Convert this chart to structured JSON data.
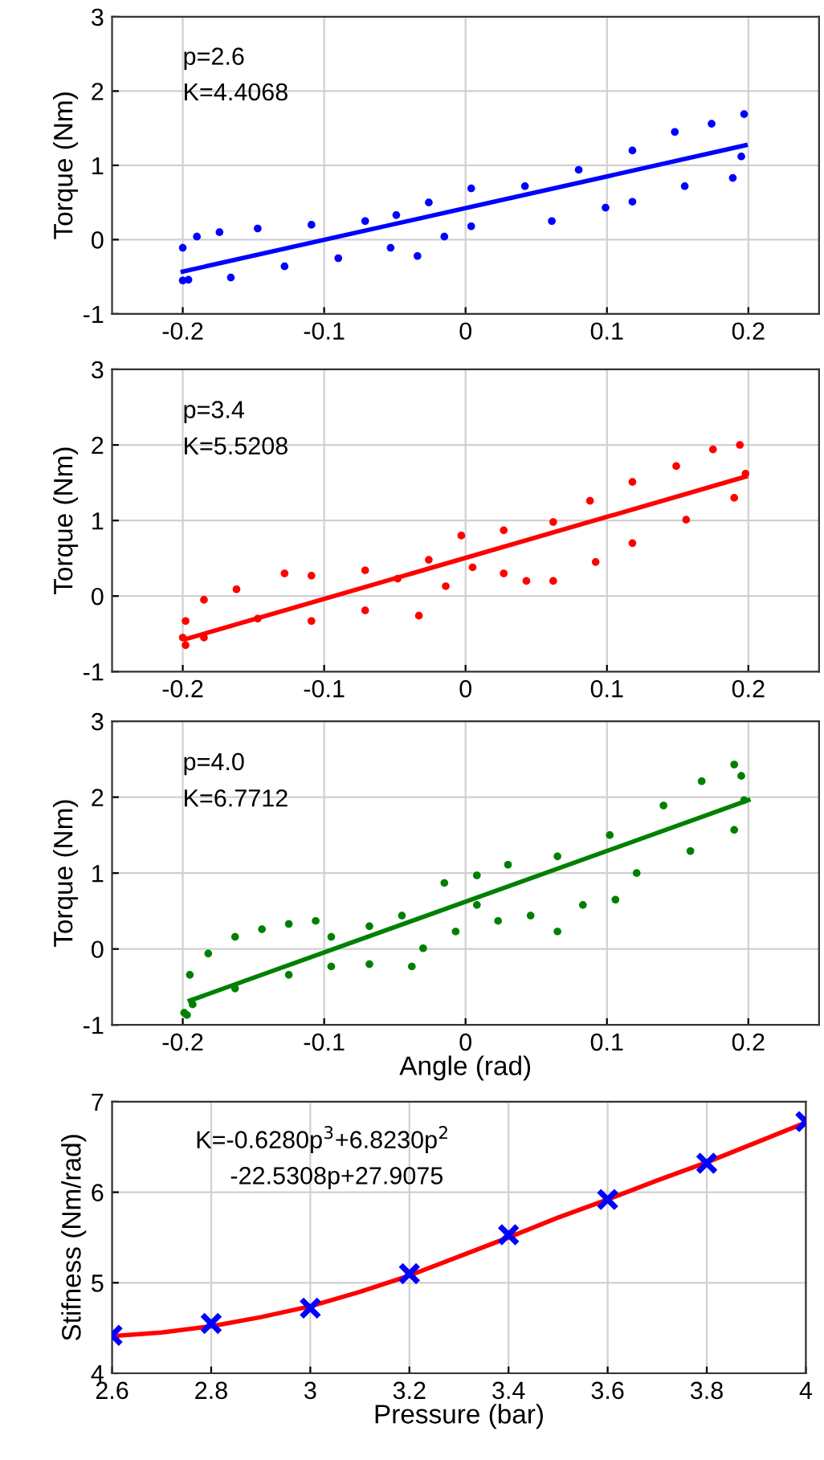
{
  "chart_data": [
    {
      "type": "scatter",
      "ylabel": "Torque (Nm)",
      "xlim": [
        -0.25,
        0.25
      ],
      "ylim": [
        -1,
        3
      ],
      "xticks": [
        -0.2,
        -0.1,
        0,
        0.1,
        0.2
      ],
      "yticks": [
        -1,
        0,
        1,
        2,
        3
      ],
      "grid": true,
      "annotations": [
        "p=2.6",
        "K=4.4068"
      ],
      "series": [
        {
          "color": "#0000ff",
          "marker": "circle",
          "x": [
            -0.2,
            -0.2,
            -0.19,
            -0.174,
            -0.147,
            -0.109,
            -0.071,
            -0.049,
            -0.026,
            0.004,
            0.042,
            0.08,
            0.118,
            0.148,
            0.174,
            0.197,
            0.195,
            0.189,
            0.155,
            0.118,
            0.099,
            0.061,
            0.004,
            -0.015,
            -0.034,
            -0.053,
            -0.09,
            -0.128,
            -0.166,
            -0.196
          ],
          "values": [
            -0.55,
            -0.11,
            0.04,
            0.1,
            0.15,
            0.2,
            0.25,
            0.33,
            0.5,
            0.69,
            0.72,
            0.94,
            1.2,
            1.45,
            1.56,
            1.69,
            1.12,
            0.83,
            0.72,
            0.51,
            0.43,
            0.25,
            0.18,
            0.04,
            -0.22,
            -0.11,
            -0.25,
            -0.36,
            -0.51,
            -0.54
          ]
        },
        {
          "type": "line",
          "color": "#0000ff",
          "marker": "none",
          "x": [
            -0.2,
            0.198
          ],
          "values": [
            -0.43,
            1.27
          ]
        }
      ]
    },
    {
      "type": "scatter",
      "ylabel": "Torque (Nm)",
      "xlim": [
        -0.25,
        0.25
      ],
      "ylim": [
        -1,
        3
      ],
      "xticks": [
        -0.2,
        -0.1,
        0,
        0.1,
        0.2
      ],
      "yticks": [
        -1,
        0,
        1,
        2,
        3
      ],
      "grid": true,
      "annotations": [
        "p=3.4",
        "K=5.5208"
      ],
      "series": [
        {
          "color": "#ff0000",
          "marker": "circle",
          "x": [
            -0.2,
            -0.198,
            -0.185,
            -0.162,
            -0.128,
            -0.109,
            -0.071,
            -0.048,
            -0.026,
            -0.003,
            0.027,
            0.062,
            0.088,
            0.118,
            0.149,
            0.175,
            0.194,
            0.198,
            0.19,
            0.156,
            0.118,
            0.092,
            0.062,
            0.043,
            0.027,
            0.005,
            -0.014,
            -0.033,
            -0.071,
            -0.109,
            -0.147,
            -0.185,
            -0.198
          ],
          "values": [
            -0.55,
            -0.33,
            -0.05,
            0.09,
            0.3,
            0.27,
            0.34,
            0.23,
            0.48,
            0.8,
            0.87,
            0.98,
            1.26,
            1.51,
            1.72,
            1.94,
            2.0,
            1.62,
            1.3,
            1.01,
            0.7,
            0.45,
            0.2,
            0.2,
            0.3,
            0.38,
            0.13,
            -0.26,
            -0.19,
            -0.33,
            -0.3,
            -0.55,
            -0.65
          ]
        },
        {
          "type": "line",
          "color": "#ff0000",
          "marker": "none",
          "x": [
            -0.198,
            0.198
          ],
          "values": [
            -0.57,
            1.58
          ]
        }
      ]
    },
    {
      "type": "scatter",
      "xlabel": "Angle (rad)",
      "ylabel": "Torque (Nm)",
      "xlim": [
        -0.25,
        0.25
      ],
      "ylim": [
        -1,
        3
      ],
      "xticks": [
        -0.2,
        -0.1,
        0,
        0.1,
        0.2
      ],
      "yticks": [
        -1,
        0,
        1,
        2,
        3
      ],
      "grid": true,
      "annotations": [
        "p=4.0",
        "K=6.7712"
      ],
      "series": [
        {
          "color": "#008000",
          "marker": "circle",
          "x": [
            -0.199,
            -0.195,
            -0.182,
            -0.163,
            -0.144,
            -0.125,
            -0.106,
            -0.095,
            -0.068,
            -0.045,
            -0.015,
            0.008,
            0.03,
            0.065,
            0.102,
            0.14,
            0.167,
            0.19,
            0.195,
            0.197,
            0.19,
            0.159,
            0.121,
            0.106,
            0.083,
            0.065,
            0.046,
            0.023,
            0.008,
            -0.007,
            -0.03,
            -0.038,
            -0.068,
            -0.095,
            -0.125,
            -0.163,
            -0.193,
            -0.197
          ],
          "values": [
            -0.84,
            -0.34,
            -0.06,
            0.16,
            0.26,
            0.33,
            0.37,
            0.16,
            0.3,
            0.44,
            0.87,
            0.97,
            1.11,
            1.22,
            1.5,
            1.89,
            2.21,
            2.43,
            2.28,
            1.96,
            1.57,
            1.29,
            1.0,
            0.65,
            0.58,
            0.23,
            0.44,
            0.37,
            0.58,
            0.23,
            0.01,
            -0.23,
            -0.2,
            -0.23,
            -0.34,
            -0.52,
            -0.73,
            -0.87
          ]
        },
        {
          "type": "line",
          "color": "#008000",
          "marker": "none",
          "x": [
            -0.195,
            0.2
          ],
          "values": [
            -0.68,
            1.96
          ]
        }
      ]
    },
    {
      "type": "line",
      "xlabel": "Pressure (bar)",
      "ylabel": "Stifness (Nm/rad)",
      "xlim": [
        2.6,
        4
      ],
      "ylim": [
        4,
        7
      ],
      "xticks": [
        2.6,
        2.8,
        3,
        3.2,
        3.4,
        3.6,
        3.8,
        4
      ],
      "yticks": [
        4,
        5,
        6,
        7
      ],
      "grid": true,
      "annotations": [
        "K=-0.6280p$^{3}$+6.8230p$^{2}$",
        "-22.5308p+27.9075"
      ],
      "series": [
        {
          "color": "#ff0000",
          "marker": "none",
          "x": [
            2.6,
            2.7,
            2.8,
            2.9,
            3.0,
            3.1,
            3.2,
            3.3,
            3.4,
            3.5,
            3.6,
            3.7,
            3.8,
            3.9,
            4.0
          ],
          "values": [
            4.41,
            4.45,
            4.52,
            4.62,
            4.74,
            4.9,
            5.08,
            5.29,
            5.5,
            5.72,
            5.92,
            6.13,
            6.33,
            6.55,
            6.77
          ]
        },
        {
          "type": "scatter",
          "color": "#0000ff",
          "marker": "cross",
          "x": [
            2.6,
            2.8,
            3.0,
            3.2,
            3.4,
            3.6,
            3.8,
            4.0
          ],
          "values": [
            4.42,
            4.55,
            4.72,
            5.1,
            5.53,
            5.92,
            6.32,
            6.78
          ]
        }
      ]
    }
  ]
}
